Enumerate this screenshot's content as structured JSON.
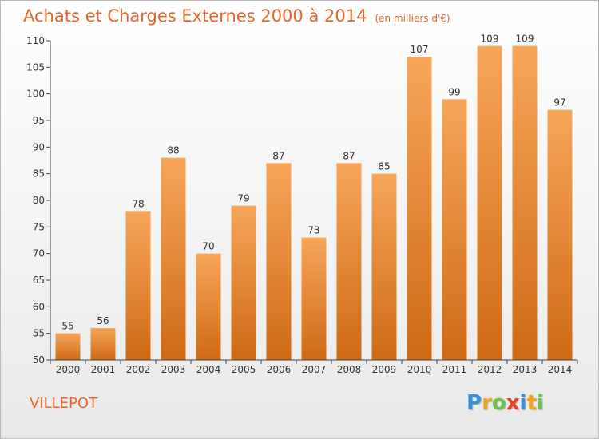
{
  "title": "Achats et Charges Externes 2000 à 2014",
  "unit_note": "(en milliers d'€)",
  "place_name": "VILLEPOT",
  "logo": {
    "letters": [
      "P",
      "r",
      "o",
      "x",
      "i",
      "t",
      "i"
    ],
    "colors": [
      "#3a8fd8",
      "#f0a418",
      "#6cc24a",
      "#e8402c",
      "#3a8fd8",
      "#f0a418",
      "#6cc24a"
    ]
  },
  "colors": {
    "accent": "#e8662c",
    "bar_light": "#f7a65a",
    "bar_dark": "#cf6a14",
    "axis": "#444444",
    "grid": "#d0d0d0",
    "text": "#333333"
  },
  "chart_data": {
    "type": "bar",
    "title": "Achats et Charges Externes 2000 à 2014",
    "subtitle": "(en milliers d'€)",
    "xlabel": "",
    "ylabel": "",
    "categories": [
      "2000",
      "2001",
      "2002",
      "2003",
      "2004",
      "2005",
      "2006",
      "2007",
      "2008",
      "2009",
      "2010",
      "2011",
      "2012",
      "2013",
      "2014"
    ],
    "values": [
      55,
      56,
      78,
      88,
      70,
      79,
      87,
      73,
      87,
      85,
      107,
      99,
      109,
      109,
      97
    ],
    "ylim": [
      50,
      110
    ],
    "yticks": [
      50,
      55,
      60,
      65,
      70,
      75,
      80,
      85,
      90,
      95,
      100,
      105,
      110
    ],
    "grid": false,
    "data_labels": true
  }
}
